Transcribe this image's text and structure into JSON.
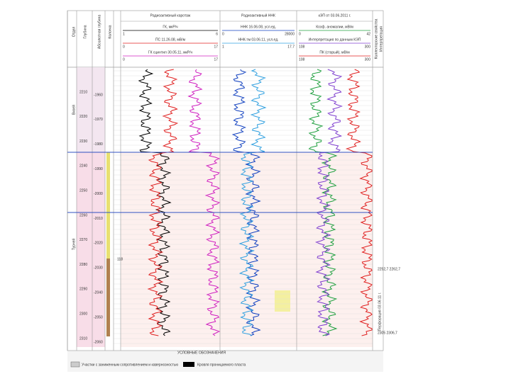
{
  "header": {
    "columns": [
      "Отдел",
      "Глубина",
      "Абсолютная глубина",
      "Колонка"
    ],
    "tracks": [
      {
        "title": "Радиоактивный каротаж",
        "curves": [
          {
            "name": "ГК, мкР/ч",
            "min": "1",
            "max": "6"
          },
          {
            "name": "ПС 11.26.08, мВ/м",
            "min": "0",
            "max": "17"
          },
          {
            "name": "ГК сцинтил 30.05.11, мкР/ч",
            "min": "0",
            "max": "17"
          }
        ]
      },
      {
        "title": "Радиоактивный ННК",
        "curves": [
          {
            "name": "ННК 16.06.08, усл.ед.",
            "min": "0",
            "max": "28000"
          },
          {
            "name": "ННК-тм 03.06.11, усл.ед.",
            "min": "1",
            "max": "17.7"
          }
        ]
      },
      {
        "title": "кЭП от 03.06.2011 г.",
        "curves": [
          {
            "name": "Коэф. аномалии, мВ/м",
            "min": "0",
            "max": "42"
          },
          {
            "name": "Интерпретация по данным КЭП",
            "min": "108",
            "max": "300"
          },
          {
            "name": "ПК (старый), мВ/м",
            "min": "108",
            "max": "300"
          }
        ]
      }
    ],
    "right": [
      "Коллекторские свойства",
      "Интерпретация"
    ]
  },
  "strata": [
    "Визей",
    "Турней"
  ],
  "depths": [
    "2210",
    "2220",
    "2230",
    "2240",
    "2250",
    "2260",
    "2270",
    "2280",
    "2290",
    "2300",
    "2310"
  ],
  "abs_depths": [
    "-1960",
    "-1970",
    "-1980",
    "-1990",
    "-2000",
    "-2010",
    "-2020",
    "-2030",
    "-2040",
    "-2050",
    "-2060"
  ],
  "marker": "118",
  "notes": [
    "2252,7 2262,7",
    "Перфорация 03.06.11 г.",
    "2305 2306,7"
  ],
  "legend": {
    "title": "УСЛОВНЫЕ ОБОЗНАЧЕНИЯ",
    "items": [
      "Участки с заниженным сопротивлением и кавернозностью",
      "Кровля проницаемого пласта"
    ]
  }
}
